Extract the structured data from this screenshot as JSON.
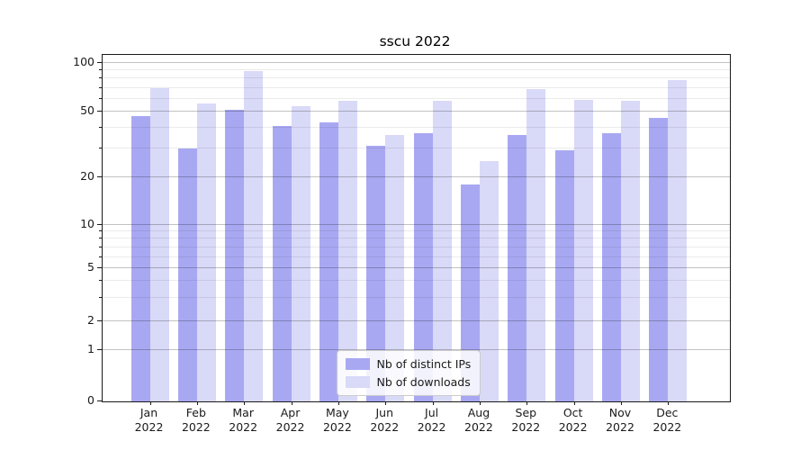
{
  "title": "sscu 2022",
  "chart_data": {
    "type": "bar",
    "title": "sscu 2022",
    "categories": [
      "Jan",
      "Feb",
      "Mar",
      "Apr",
      "May",
      "Jun",
      "Jul",
      "Aug",
      "Sep",
      "Oct",
      "Nov",
      "Dec"
    ],
    "category_year": "2022",
    "series": [
      {
        "name": "Nb of distinct IPs",
        "color": "#a8a8f2",
        "values": [
          47,
          30,
          51,
          41,
          43,
          31,
          37,
          18,
          36,
          29,
          37,
          46
        ]
      },
      {
        "name": "Nb of downloads",
        "color": "#d9d9f8",
        "values": [
          70,
          56,
          89,
          54,
          58,
          36,
          58,
          25,
          69,
          59,
          58,
          78
        ]
      }
    ],
    "xlabel": "",
    "ylabel": "",
    "yscale": "log-like (ticks at 1-2-5 sequence, 0 baseline)",
    "yticks": [
      0,
      1,
      2,
      5,
      10,
      20,
      50,
      100
    ],
    "ytick_labels": [
      "0",
      "1",
      "2",
      "5",
      "10",
      "20",
      "50",
      "100"
    ],
    "yminor_ticks": [
      3,
      4,
      6,
      7,
      8,
      9,
      30,
      40,
      60,
      70,
      80,
      90
    ],
    "scale_anchors": [
      [
        0,
        0
      ],
      [
        1,
        0.1473
      ],
      [
        2,
        0.2325
      ],
      [
        5,
        0.3836
      ],
      [
        10,
        0.5096
      ],
      [
        20,
        0.6475
      ],
      [
        50,
        0.8364
      ],
      [
        100,
        0.9766
      ]
    ],
    "grid": "both (major and minor horizontal gridlines)",
    "legend_position": "lower center",
    "legend_entries": [
      "Nb of distinct IPs",
      "Nb of downloads"
    ]
  }
}
